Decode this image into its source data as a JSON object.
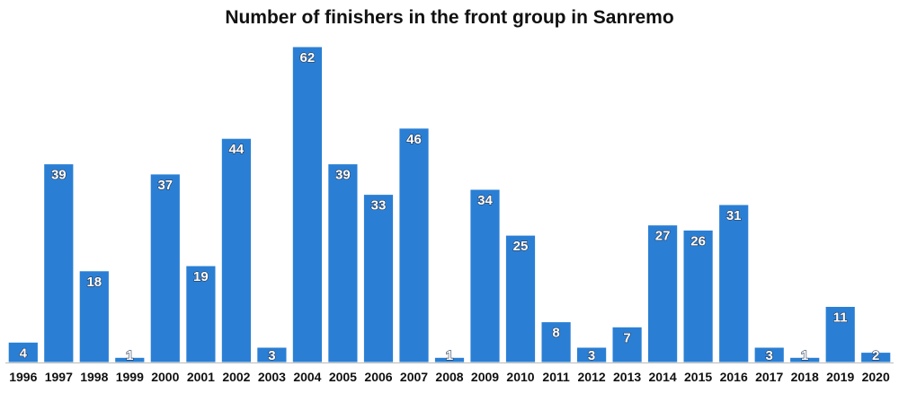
{
  "colors": {
    "bar": "#2a7fd4",
    "text": "#111111"
  },
  "chart_data": {
    "type": "bar",
    "title": "Number of finishers in the front group in Sanremo",
    "xlabel": "",
    "ylabel": "",
    "categories": [
      "1996",
      "1997",
      "1998",
      "1999",
      "2000",
      "2001",
      "2002",
      "2003",
      "2004",
      "2005",
      "2006",
      "2007",
      "2008",
      "2009",
      "2010",
      "2011",
      "2012",
      "2013",
      "2014",
      "2015",
      "2016",
      "2017",
      "2018",
      "2019",
      "2020"
    ],
    "values": [
      4,
      39,
      18,
      1,
      37,
      19,
      44,
      3,
      62,
      39,
      33,
      46,
      1,
      34,
      25,
      8,
      3,
      7,
      27,
      26,
      31,
      3,
      1,
      11,
      2
    ],
    "ylim": [
      0,
      62
    ],
    "grid": false,
    "legend": "none"
  }
}
